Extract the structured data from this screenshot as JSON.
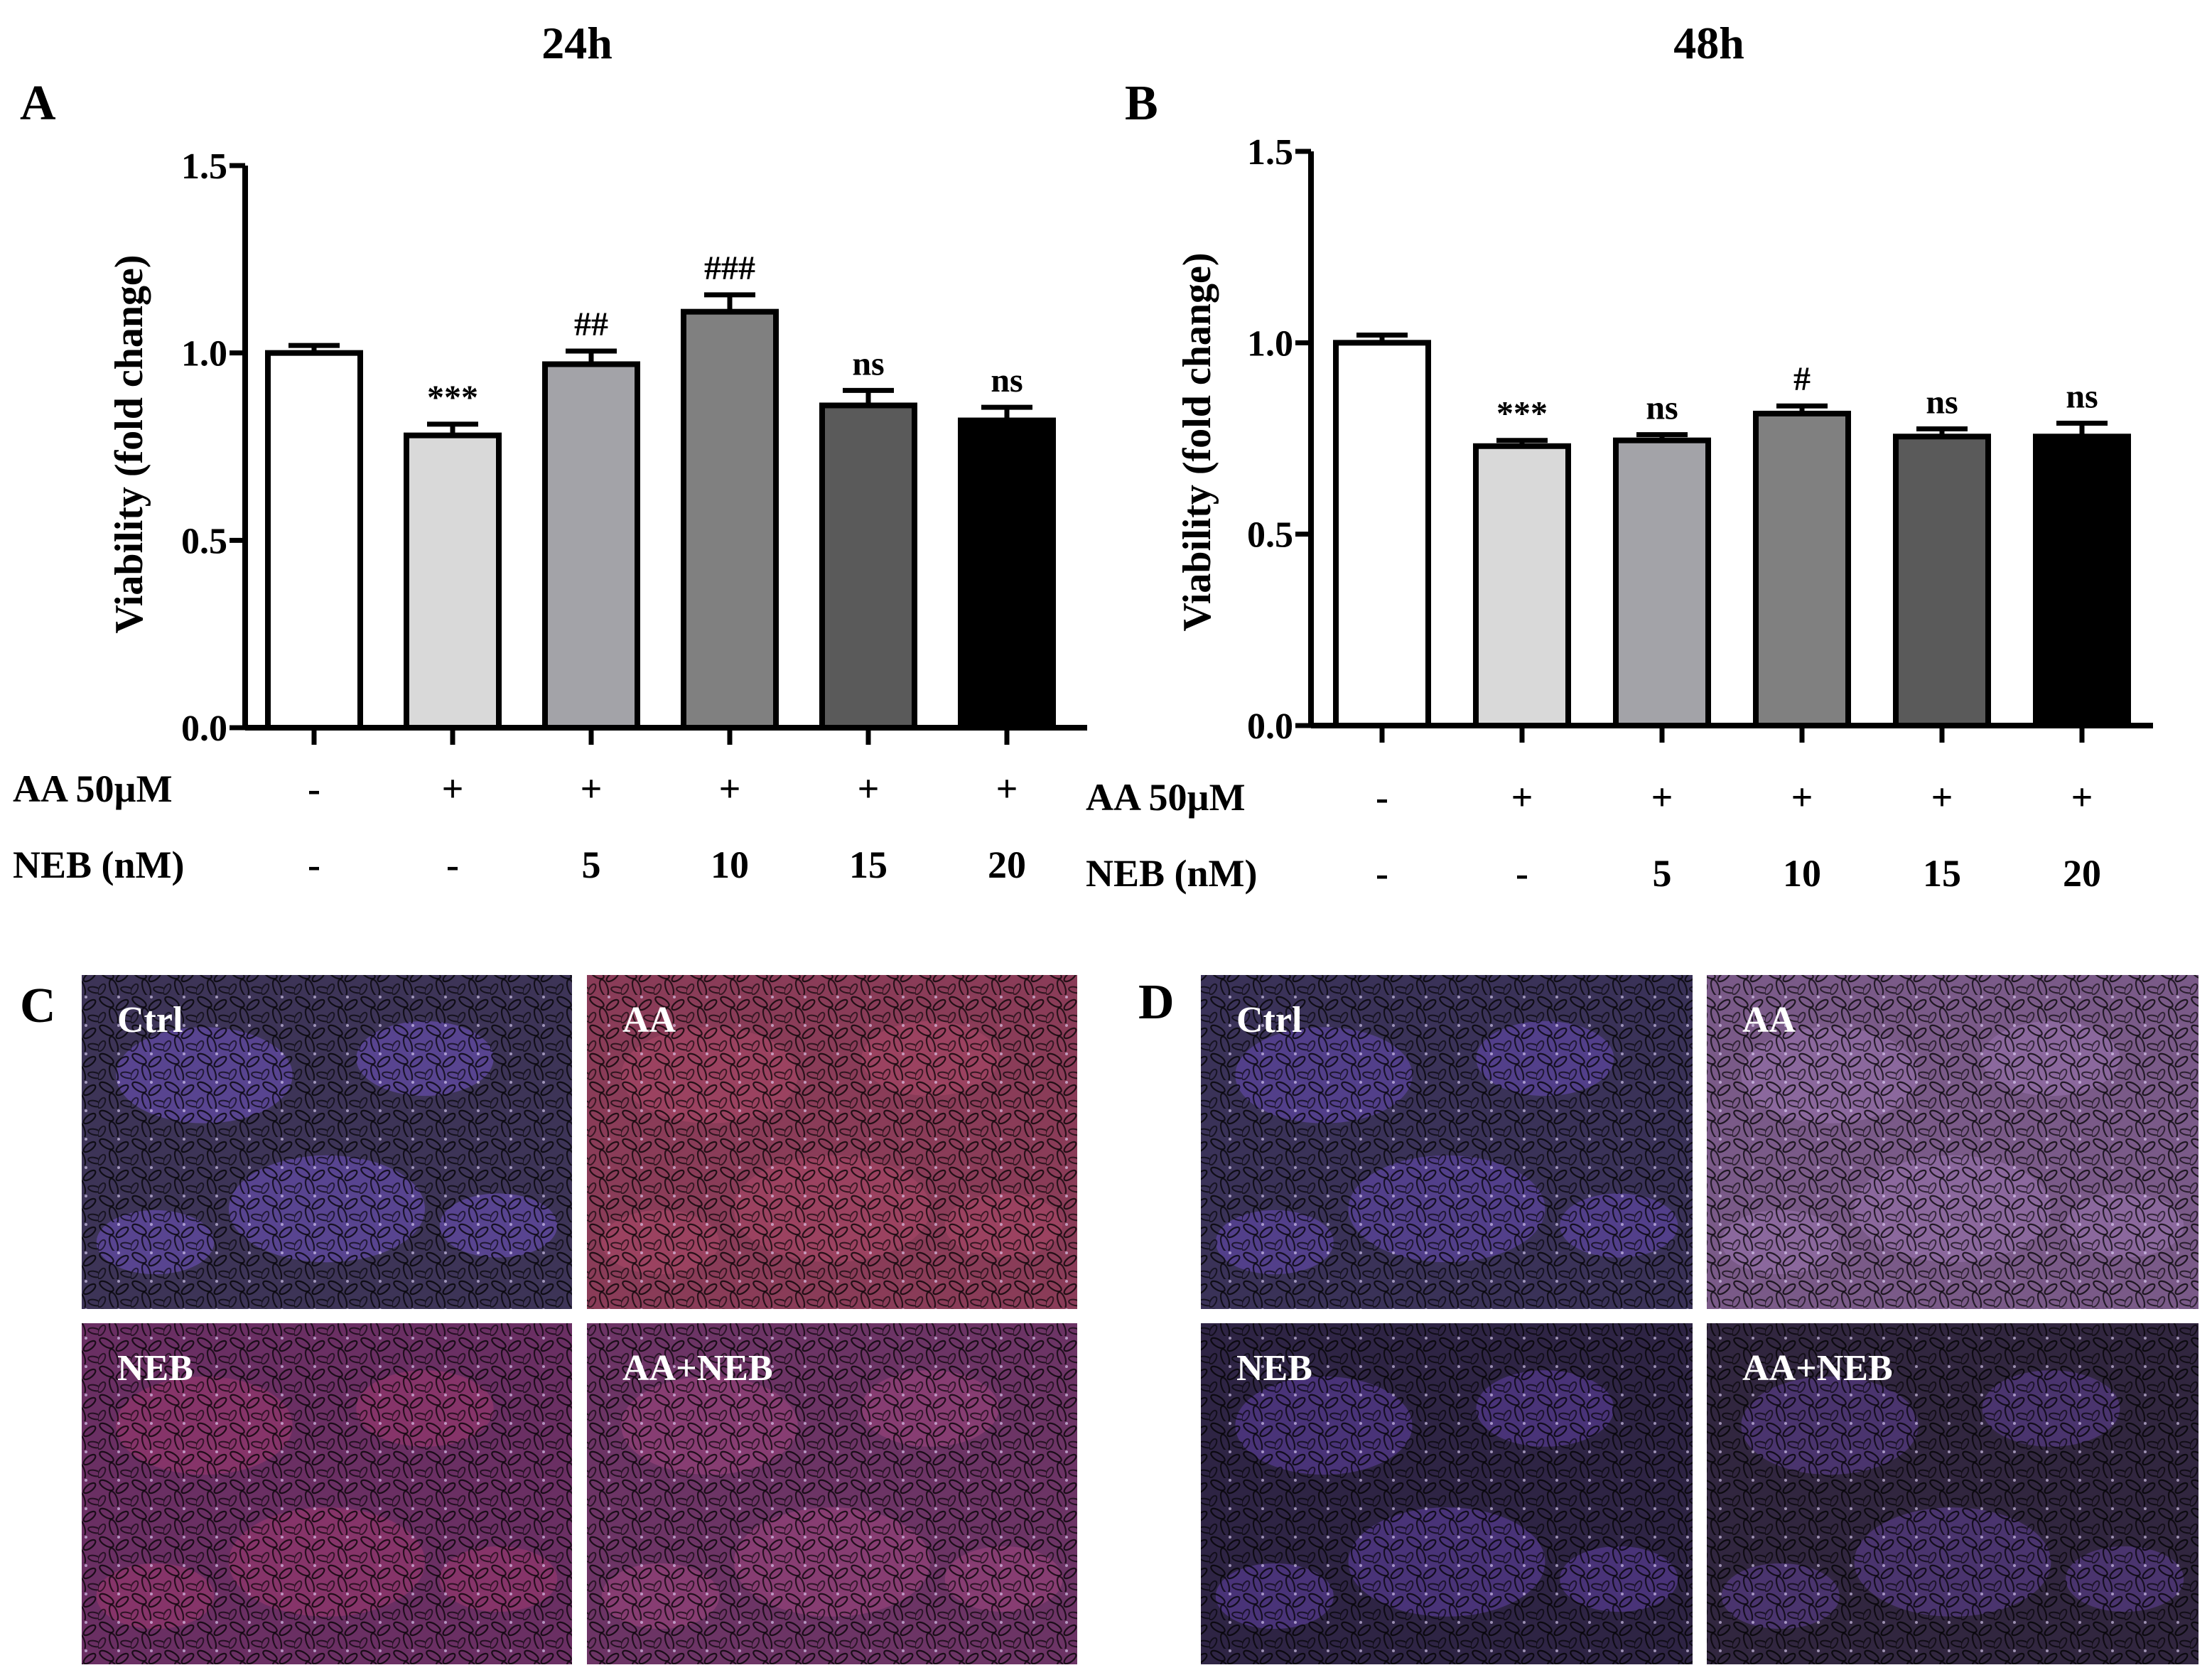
{
  "chart_data": [
    {
      "type": "bar",
      "panel_label": "A",
      "title": "24h",
      "ylabel": "Viability (fold change)",
      "ylim": [
        0,
        1.5
      ],
      "yticks": [
        "0.0",
        "0.5",
        "1.0",
        "1.5"
      ],
      "categories": [
        "Ctrl",
        "AA",
        "AA+NEB5",
        "AA+NEB10",
        "AA+NEB15",
        "AA+NEB20"
      ],
      "values": [
        1.0,
        0.78,
        0.97,
        1.11,
        0.86,
        0.82
      ],
      "errors": [
        0.02,
        0.03,
        0.035,
        0.045,
        0.04,
        0.035
      ],
      "annotations": [
        "",
        "***",
        "##",
        "###",
        "ns",
        "ns"
      ],
      "bar_colors": [
        "#ffffff",
        "#d9d9d9",
        "#a3a3a8",
        "#808080",
        "#5a5a5a",
        "#000000"
      ],
      "condition_rows": [
        {
          "label": "AA 50µM",
          "values": [
            "-",
            "+",
            "+",
            "+",
            "+",
            "+"
          ]
        },
        {
          "label": "NEB (nM)",
          "values": [
            "-",
            "-",
            "5",
            "10",
            "15",
            "20"
          ]
        }
      ]
    },
    {
      "type": "bar",
      "panel_label": "B",
      "title": "48h",
      "ylabel": "Viability (fold change)",
      "ylim": [
        0,
        1.5
      ],
      "yticks": [
        "0.0",
        "0.5",
        "1.0",
        "1.5"
      ],
      "categories": [
        "Ctrl",
        "AA",
        "AA+NEB5",
        "AA+NEB10",
        "AA+NEB15",
        "AA+NEB20"
      ],
      "values": [
        1.0,
        0.73,
        0.745,
        0.815,
        0.755,
        0.755
      ],
      "errors": [
        0.02,
        0.015,
        0.015,
        0.02,
        0.02,
        0.035
      ],
      "annotations": [
        "",
        "***",
        "ns",
        "#",
        "ns",
        "ns"
      ],
      "bar_colors": [
        "#ffffff",
        "#d9d9d9",
        "#a3a3a8",
        "#808080",
        "#5a5a5a",
        "#000000"
      ],
      "condition_rows": [
        {
          "label": "AA 50µM",
          "values": [
            "-",
            "+",
            "+",
            "+",
            "+",
            "+"
          ]
        },
        {
          "label": "NEB (nM)",
          "values": [
            "-",
            "-",
            "5",
            "10",
            "15",
            "20"
          ]
        }
      ]
    }
  ],
  "micrographs": [
    {
      "panel_label": "C",
      "images": [
        {
          "label": "Ctrl",
          "base": "#3d3457",
          "tint": "#7a58d6"
        },
        {
          "label": "AA",
          "base": "#8a3c58",
          "tint": "#b04a6a"
        },
        {
          "label": "NEB",
          "base": "#6a2f63",
          "tint": "#a83b72"
        },
        {
          "label": "AA+NEB",
          "base": "#6c3465",
          "tint": "#a84a82"
        }
      ]
    },
    {
      "panel_label": "D",
      "images": [
        {
          "label": "Ctrl",
          "base": "#3a3258",
          "tint": "#7050c8"
        },
        {
          "label": "AA",
          "base": "#7a5a88",
          "tint": "#a07ab8"
        },
        {
          "label": "NEB",
          "base": "#2e2444",
          "tint": "#6a48b8"
        },
        {
          "label": "AA+NEB",
          "base": "#31263f",
          "tint": "#6a46a8"
        }
      ]
    }
  ]
}
